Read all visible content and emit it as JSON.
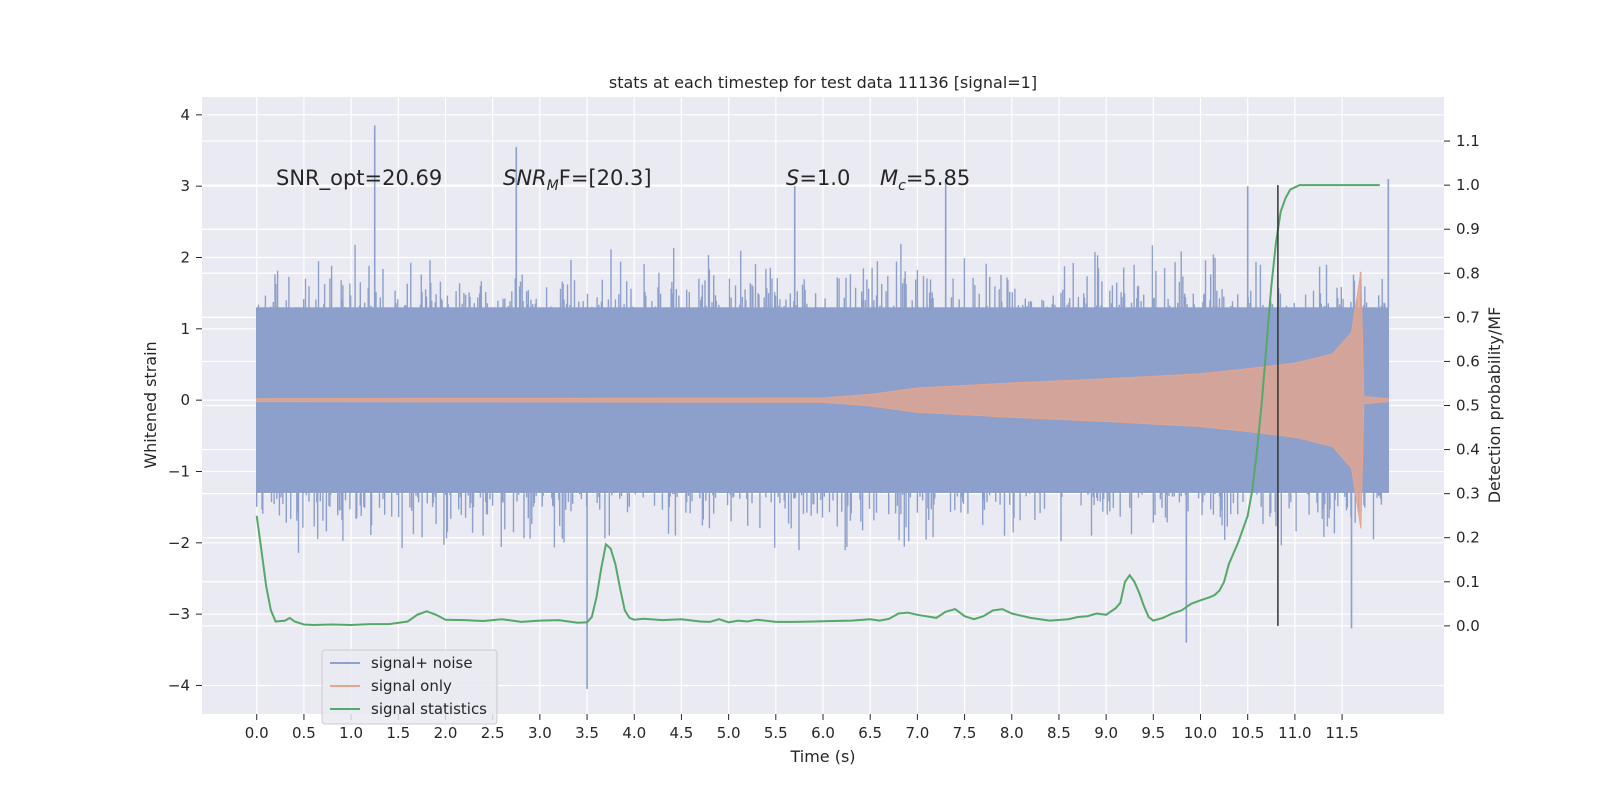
{
  "chart_data": {
    "type": "line",
    "title": "stats at each timestep for test data 11136 [signal=1]",
    "xlabel": "Time (s)",
    "ylabel": "Whitened strain",
    "y2label": "Detection probability/MF",
    "xlim": [
      -0.58,
      12.58
    ],
    "ylim": [
      -4.4,
      4.25
    ],
    "y2lim": [
      -0.2,
      1.2
    ],
    "x_ticks": [
      "0.0",
      "0.5",
      "1.0",
      "1.5",
      "2.0",
      "2.5",
      "3.0",
      "3.5",
      "4.0",
      "4.5",
      "5.0",
      "5.5",
      "6.0",
      "6.5",
      "7.0",
      "7.5",
      "8.0",
      "8.5",
      "9.0",
      "9.5",
      "10.0",
      "10.5",
      "11.0",
      "11.5"
    ],
    "y_ticks": [
      "4",
      "3",
      "2",
      "1",
      "0",
      "−1",
      "−2",
      "−3",
      "−4"
    ],
    "y2_ticks": [
      "1.1",
      "1.0",
      "0.9",
      "0.8",
      "0.7",
      "0.6",
      "0.5",
      "0.4",
      "0.3",
      "0.2",
      "0.1",
      "0.0"
    ],
    "grid": true,
    "legend_position": "lower-left",
    "annotations": {
      "snr_opt": "SNR_opt=20.69",
      "snr_mf_main": "SNR",
      "snr_mf_sub": "M",
      "snr_mf_rest": "F=[20.3]",
      "s_main": "S",
      "s_rest": "=1.0",
      "mc_main": "M",
      "mc_sub": "c",
      "mc_rest": "=5.85"
    },
    "vertical_marker_x": 10.82,
    "series": [
      {
        "name": "signal+ noise",
        "color": "#8da0cb",
        "x_range": [
          0.0,
          11.99
        ],
        "envelope_core": 1.3,
        "typical_peak": 1.9,
        "notable_peaks": [
          {
            "x": 1.25,
            "y": 3.85
          },
          {
            "x": 2.75,
            "y": 3.55
          },
          {
            "x": 3.5,
            "y": -4.05
          },
          {
            "x": 9.85,
            "y": -3.4
          },
          {
            "x": 11.6,
            "y": -3.2
          },
          {
            "x": 11.99,
            "y": 3.1
          },
          {
            "x": 10.5,
            "y": 3.0
          },
          {
            "x": 5.7,
            "y": 3.0
          },
          {
            "x": 7.3,
            "y": 3.1
          }
        ]
      },
      {
        "name": "signal only",
        "color": "#e5a58d",
        "x_range": [
          0.0,
          11.99
        ],
        "amplitude": [
          {
            "x": 0.0,
            "y": 0.02
          },
          {
            "x": 6.0,
            "y": 0.03
          },
          {
            "x": 6.5,
            "y": 0.08
          },
          {
            "x": 7.0,
            "y": 0.17
          },
          {
            "x": 8.0,
            "y": 0.24
          },
          {
            "x": 9.0,
            "y": 0.3
          },
          {
            "x": 10.0,
            "y": 0.37
          },
          {
            "x": 10.5,
            "y": 0.44
          },
          {
            "x": 11.0,
            "y": 0.52
          },
          {
            "x": 11.4,
            "y": 0.65
          },
          {
            "x": 11.6,
            "y": 0.95
          },
          {
            "x": 11.7,
            "y": 1.8
          },
          {
            "x": 11.73,
            "y": 0.05
          },
          {
            "x": 11.99,
            "y": 0.02
          }
        ]
      },
      {
        "name": "signal statistics",
        "color": "#55a868",
        "axis": "right",
        "x": [
          0.0,
          0.05,
          0.1,
          0.15,
          0.2,
          0.3,
          0.35,
          0.4,
          0.5,
          0.6,
          0.8,
          1.0,
          1.2,
          1.4,
          1.6,
          1.7,
          1.8,
          1.9,
          2.0,
          2.2,
          2.4,
          2.6,
          2.8,
          3.0,
          3.2,
          3.4,
          3.5,
          3.55,
          3.6,
          3.65,
          3.7,
          3.75,
          3.8,
          3.85,
          3.9,
          3.95,
          4.0,
          4.1,
          4.3,
          4.5,
          4.7,
          4.8,
          4.9,
          5.0,
          5.1,
          5.2,
          5.3,
          5.5,
          5.7,
          5.9,
          6.1,
          6.3,
          6.5,
          6.6,
          6.7,
          6.8,
          6.9,
          7.0,
          7.2,
          7.3,
          7.4,
          7.5,
          7.6,
          7.7,
          7.8,
          7.9,
          8.0,
          8.2,
          8.4,
          8.6,
          8.7,
          8.8,
          8.9,
          9.0,
          9.1,
          9.15,
          9.2,
          9.25,
          9.3,
          9.35,
          9.4,
          9.45,
          9.5,
          9.6,
          9.7,
          9.8,
          9.9,
          10.0,
          10.1,
          10.15,
          10.2,
          10.25,
          10.3,
          10.4,
          10.5,
          10.55,
          10.6,
          10.65,
          10.7,
          10.75,
          10.8,
          10.85,
          10.9,
          10.95,
          11.0,
          11.05,
          11.1,
          11.2,
          11.3,
          11.5,
          11.7,
          11.9
        ],
        "y": [
          0.25,
          0.17,
          0.09,
          0.035,
          0.01,
          0.012,
          0.018,
          0.01,
          0.003,
          0.002,
          0.003,
          0.002,
          0.004,
          0.004,
          0.01,
          0.025,
          0.033,
          0.025,
          0.014,
          0.013,
          0.011,
          0.015,
          0.009,
          0.012,
          0.013,
          0.007,
          0.008,
          0.02,
          0.065,
          0.13,
          0.185,
          0.175,
          0.14,
          0.085,
          0.035,
          0.018,
          0.014,
          0.016,
          0.013,
          0.015,
          0.01,
          0.009,
          0.015,
          0.008,
          0.012,
          0.01,
          0.014,
          0.009,
          0.009,
          0.01,
          0.011,
          0.012,
          0.015,
          0.012,
          0.016,
          0.028,
          0.03,
          0.025,
          0.018,
          0.032,
          0.038,
          0.022,
          0.015,
          0.022,
          0.035,
          0.038,
          0.028,
          0.018,
          0.012,
          0.015,
          0.02,
          0.022,
          0.028,
          0.025,
          0.04,
          0.052,
          0.1,
          0.115,
          0.1,
          0.075,
          0.045,
          0.02,
          0.012,
          0.018,
          0.028,
          0.035,
          0.05,
          0.058,
          0.065,
          0.07,
          0.08,
          0.1,
          0.14,
          0.19,
          0.25,
          0.31,
          0.4,
          0.51,
          0.64,
          0.77,
          0.87,
          0.94,
          0.97,
          0.99,
          0.995,
          1.0,
          1.0,
          1.0,
          1.0,
          1.0,
          1.0,
          1.0
        ]
      }
    ]
  }
}
